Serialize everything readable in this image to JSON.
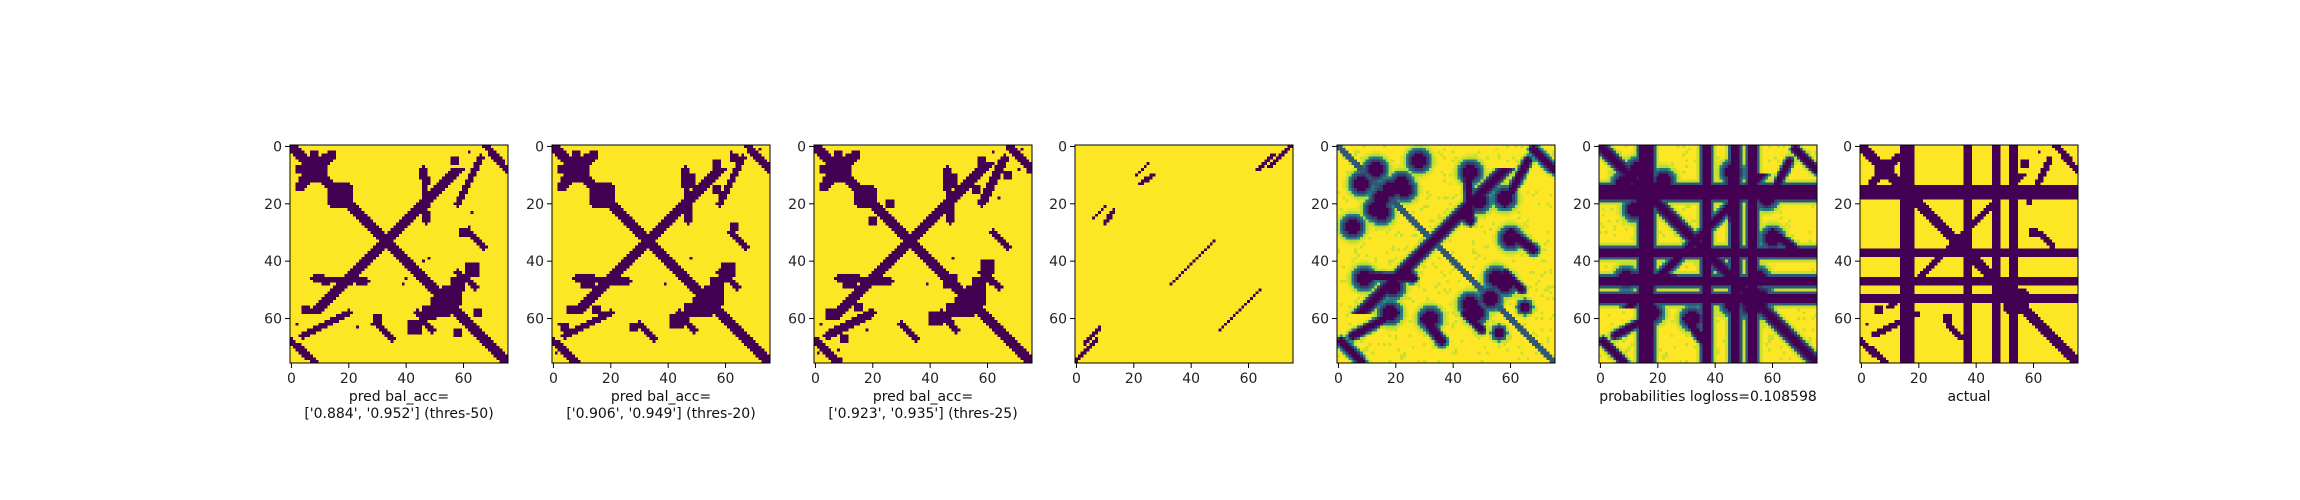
{
  "chart_data": [
    {
      "type": "heatmap",
      "kind": "binary",
      "colors": {
        "low": "#440154",
        "high": "#fde725"
      },
      "xticks": [
        "0",
        "20",
        "40",
        "60"
      ],
      "yticks": [
        "0",
        "20",
        "40",
        "60"
      ],
      "caption": [
        "pred bal_acc=",
        "['0.884', '0.952'] (thres-50)"
      ],
      "size": 76,
      "main_diag_width": 2.6,
      "anti_diags": [
        {
          "k": 66,
          "from": 8,
          "to": 58,
          "w": 2.6
        }
      ],
      "blobs": [
        [
          8,
          8,
          5
        ],
        [
          18,
          16,
          4
        ],
        [
          55,
          53,
          5
        ],
        [
          63,
          43,
          3
        ],
        [
          58,
          48,
          3
        ],
        [
          47,
          12,
          2
        ],
        [
          47,
          20,
          2
        ],
        [
          60,
          30,
          2
        ],
        [
          65,
          58,
          2
        ],
        [
          5,
          57,
          2
        ],
        [
          3,
          8,
          2
        ]
      ],
      "segments": [
        [
          12,
          4,
          3,
          14,
          1.6
        ],
        [
          20,
          58,
          4,
          66,
          1.3
        ],
        [
          68,
          0,
          75,
          8,
          1.3
        ],
        [
          46,
          8,
          47,
          26,
          1.2
        ],
        [
          30,
          62,
          35,
          67,
          1.1
        ],
        [
          44,
          58,
          49,
          64,
          1.1
        ]
      ],
      "dots": [
        [
          2,
          62
        ],
        [
          4,
          65
        ],
        [
          14,
          12
        ],
        [
          39,
          48
        ],
        [
          42,
          44
        ],
        [
          46,
          40
        ],
        [
          58,
          6
        ],
        [
          63,
          23
        ],
        [
          62,
          28
        ],
        [
          73,
          74
        ]
      ]
    },
    {
      "type": "heatmap",
      "kind": "binary",
      "colors": {
        "low": "#440154",
        "high": "#fde725"
      },
      "xticks": [
        "0",
        "20",
        "40",
        "60"
      ],
      "yticks": [
        "0",
        "20",
        "40",
        "60"
      ],
      "caption": [
        "pred bal_acc=",
        "['0.906', '0.949'] (thres-20)"
      ],
      "size": 76,
      "main_diag_width": 2.6,
      "anti_diags": [
        {
          "k": 66,
          "from": 8,
          "to": 58,
          "w": 2.8
        }
      ],
      "blobs": [
        [
          8,
          8,
          5
        ],
        [
          18,
          16,
          4
        ],
        [
          55,
          53,
          5
        ],
        [
          61,
          43,
          3
        ],
        [
          57,
          48,
          3
        ],
        [
          47,
          12,
          3
        ],
        [
          15,
          57,
          2
        ],
        [
          59,
          17,
          2
        ],
        [
          63,
          28,
          2
        ],
        [
          6,
          57,
          2
        ],
        [
          3,
          8,
          2
        ],
        [
          63,
          4,
          2
        ]
      ],
      "segments": [
        [
          12,
          4,
          3,
          14,
          1.6
        ],
        [
          20,
          58,
          4,
          66,
          1.3
        ],
        [
          68,
          0,
          75,
          8,
          1.4
        ],
        [
          46,
          8,
          47,
          26,
          1.3
        ],
        [
          30,
          62,
          35,
          67,
          1.1
        ],
        [
          44,
          58,
          49,
          64,
          1.1
        ]
      ],
      "dots": [
        [
          2,
          62
        ],
        [
          4,
          65
        ],
        [
          14,
          12
        ],
        [
          39,
          48
        ],
        [
          42,
          44
        ],
        [
          73,
          74
        ],
        [
          72,
          1
        ]
      ]
    },
    {
      "type": "heatmap",
      "kind": "binary",
      "colors": {
        "low": "#440154",
        "high": "#fde725"
      },
      "xticks": [
        "0",
        "20",
        "40",
        "60"
      ],
      "yticks": [
        "0",
        "20",
        "40",
        "60"
      ],
      "caption": [
        "pred bal_acc=",
        "['0.923', '0.935'] (thres-25)"
      ],
      "size": 76,
      "main_diag_width": 2.6,
      "anti_diags": [
        {
          "k": 66,
          "from": 6,
          "to": 60,
          "w": 3.0
        }
      ],
      "blobs": [
        [
          8,
          8,
          5
        ],
        [
          18,
          17,
          4
        ],
        [
          55,
          53,
          5
        ],
        [
          47,
          47,
          3
        ],
        [
          47,
          12,
          3
        ],
        [
          60,
          42,
          3
        ],
        [
          57,
          48,
          3
        ],
        [
          58,
          5,
          2
        ],
        [
          62,
          12,
          2
        ],
        [
          67,
          10,
          2
        ],
        [
          71,
          8,
          1
        ],
        [
          15,
          56,
          2
        ],
        [
          6,
          58,
          2
        ],
        [
          3,
          8,
          2
        ],
        [
          20,
          26,
          2
        ]
      ],
      "segments": [
        [
          12,
          4,
          3,
          14,
          1.7
        ],
        [
          20,
          58,
          4,
          66,
          1.4
        ],
        [
          68,
          0,
          75,
          8,
          1.5
        ],
        [
          46,
          8,
          47,
          26,
          1.4
        ],
        [
          30,
          62,
          35,
          67,
          1.2
        ],
        [
          44,
          58,
          49,
          64,
          1.2
        ]
      ],
      "dots": [
        [
          2,
          62
        ],
        [
          4,
          65
        ],
        [
          14,
          12
        ],
        [
          39,
          48
        ],
        [
          42,
          44
        ],
        [
          73,
          74
        ],
        [
          72,
          1
        ],
        [
          64,
          18
        ]
      ]
    },
    {
      "type": "heatmap",
      "kind": "binary",
      "colors": {
        "low": "#440154",
        "high": "#fde725"
      },
      "xticks": [
        "0",
        "20",
        "40",
        "60"
      ],
      "yticks": [
        "0",
        "20",
        "40",
        "60"
      ],
      "caption": [],
      "size": 76,
      "main_diag_width": 0,
      "anti_diags": [],
      "blobs": [],
      "segments": [
        [
          3,
          69,
          8,
          63,
          0.7
        ],
        [
          10,
          27,
          13,
          22,
          0.7
        ],
        [
          21,
          10,
          25,
          6,
          0.7
        ],
        [
          43,
          38,
          33,
          48,
          0.7
        ],
        [
          50,
          64,
          58,
          56,
          0.7
        ],
        [
          75,
          0,
          67,
          7,
          0.7
        ]
      ],
      "dots": []
    },
    {
      "type": "heatmap",
      "kind": "probabilities",
      "colors": {
        "low": "#440154",
        "mid": "#21918c",
        "high": "#fde725"
      },
      "xticks": [
        "0",
        "20",
        "40",
        "60"
      ],
      "yticks": [
        "0",
        "20",
        "40",
        "60"
      ],
      "caption": [],
      "size": 76,
      "main_diag_width": 0,
      "anti_diags": [
        {
          "k": 66,
          "from": 8,
          "to": 58,
          "w": 2.4
        }
      ],
      "soft_diag": true,
      "blobs": [
        [
          8,
          13,
          3
        ],
        [
          5,
          28,
          3
        ],
        [
          18,
          15,
          3
        ],
        [
          15,
          23,
          3
        ],
        [
          22,
          13,
          3
        ],
        [
          46,
          9,
          3
        ],
        [
          49,
          19,
          3
        ],
        [
          55,
          46,
          3
        ],
        [
          46,
          55,
          3
        ],
        [
          53,
          53,
          3
        ],
        [
          58,
          48,
          3
        ],
        [
          65,
          56,
          2
        ],
        [
          18,
          58,
          3
        ],
        [
          60,
          32,
          3
        ],
        [
          44,
          24,
          2
        ]
      ],
      "segments": [
        [
          20,
          58,
          5,
          66,
          1.3
        ],
        [
          68,
          1,
          75,
          8,
          1.4
        ],
        [
          45,
          8,
          46,
          26,
          1.3
        ],
        [
          30,
          60,
          36,
          68,
          1.5
        ],
        [
          44,
          58,
          50,
          64,
          1.2
        ]
      ],
      "dots": [],
      "haze": true
    },
    {
      "type": "heatmap",
      "kind": "probabilities",
      "colors": {
        "low": "#440154",
        "mid": "#21918c",
        "high": "#fde725"
      },
      "xticks": [
        "0",
        "20",
        "40",
        "60"
      ],
      "yticks": [
        "0",
        "20",
        "40",
        "60"
      ],
      "caption": [
        "probabilities logloss=0.108598"
      ],
      "size": 76,
      "main_diag_width": 2.4,
      "anti_diags": [
        {
          "k": 66,
          "from": 10,
          "to": 56,
          "w": 2.0
        }
      ],
      "soft_diag": false,
      "blobs": [
        [
          8,
          13,
          3
        ],
        [
          18,
          15,
          3
        ],
        [
          22,
          12,
          3
        ],
        [
          46,
          9,
          3
        ],
        [
          55,
          53,
          4
        ],
        [
          46,
          55,
          3
        ],
        [
          18,
          58,
          3
        ],
        [
          60,
          32,
          3
        ]
      ],
      "segments": [
        [
          20,
          58,
          5,
          66,
          1.2
        ],
        [
          68,
          1,
          75,
          8,
          1.3
        ],
        [
          45,
          8,
          46,
          26,
          1.2
        ],
        [
          30,
          60,
          36,
          68,
          1.3
        ]
      ],
      "dots": [],
      "haze": true,
      "lines": [
        15,
        17,
        37,
        47,
        53
      ],
      "line_width": 1.7
    },
    {
      "type": "heatmap",
      "kind": "binary",
      "colors": {
        "low": "#440154",
        "high": "#fde725"
      },
      "xticks": [
        "0",
        "20",
        "40",
        "60"
      ],
      "yticks": [
        "0",
        "20",
        "40",
        "60"
      ],
      "caption": [
        "actual"
      ],
      "size": 76,
      "main_diag_width": 2.4,
      "anti_diags": [
        {
          "k": 66,
          "from": 10,
          "to": 56,
          "w": 1.6
        }
      ],
      "blobs": [
        [
          8,
          8,
          4
        ],
        [
          18,
          16,
          3
        ],
        [
          55,
          53,
          4
        ],
        [
          47,
          12,
          2
        ],
        [
          60,
          30,
          2
        ],
        [
          6,
          57,
          2
        ]
      ],
      "segments": [
        [
          12,
          4,
          3,
          14,
          1.2
        ],
        [
          20,
          58,
          4,
          66,
          1.0
        ],
        [
          68,
          0,
          75,
          8,
          1.2
        ],
        [
          46,
          8,
          47,
          26,
          1.0
        ],
        [
          30,
          62,
          35,
          67,
          1.0
        ]
      ],
      "dots": [
        [
          2,
          62
        ],
        [
          4,
          65
        ],
        [
          14,
          12
        ],
        [
          39,
          48
        ],
        [
          42,
          44
        ],
        [
          73,
          74
        ]
      ],
      "lines": [
        15,
        17,
        37,
        47,
        53
      ],
      "line_width": 1.5
    }
  ]
}
